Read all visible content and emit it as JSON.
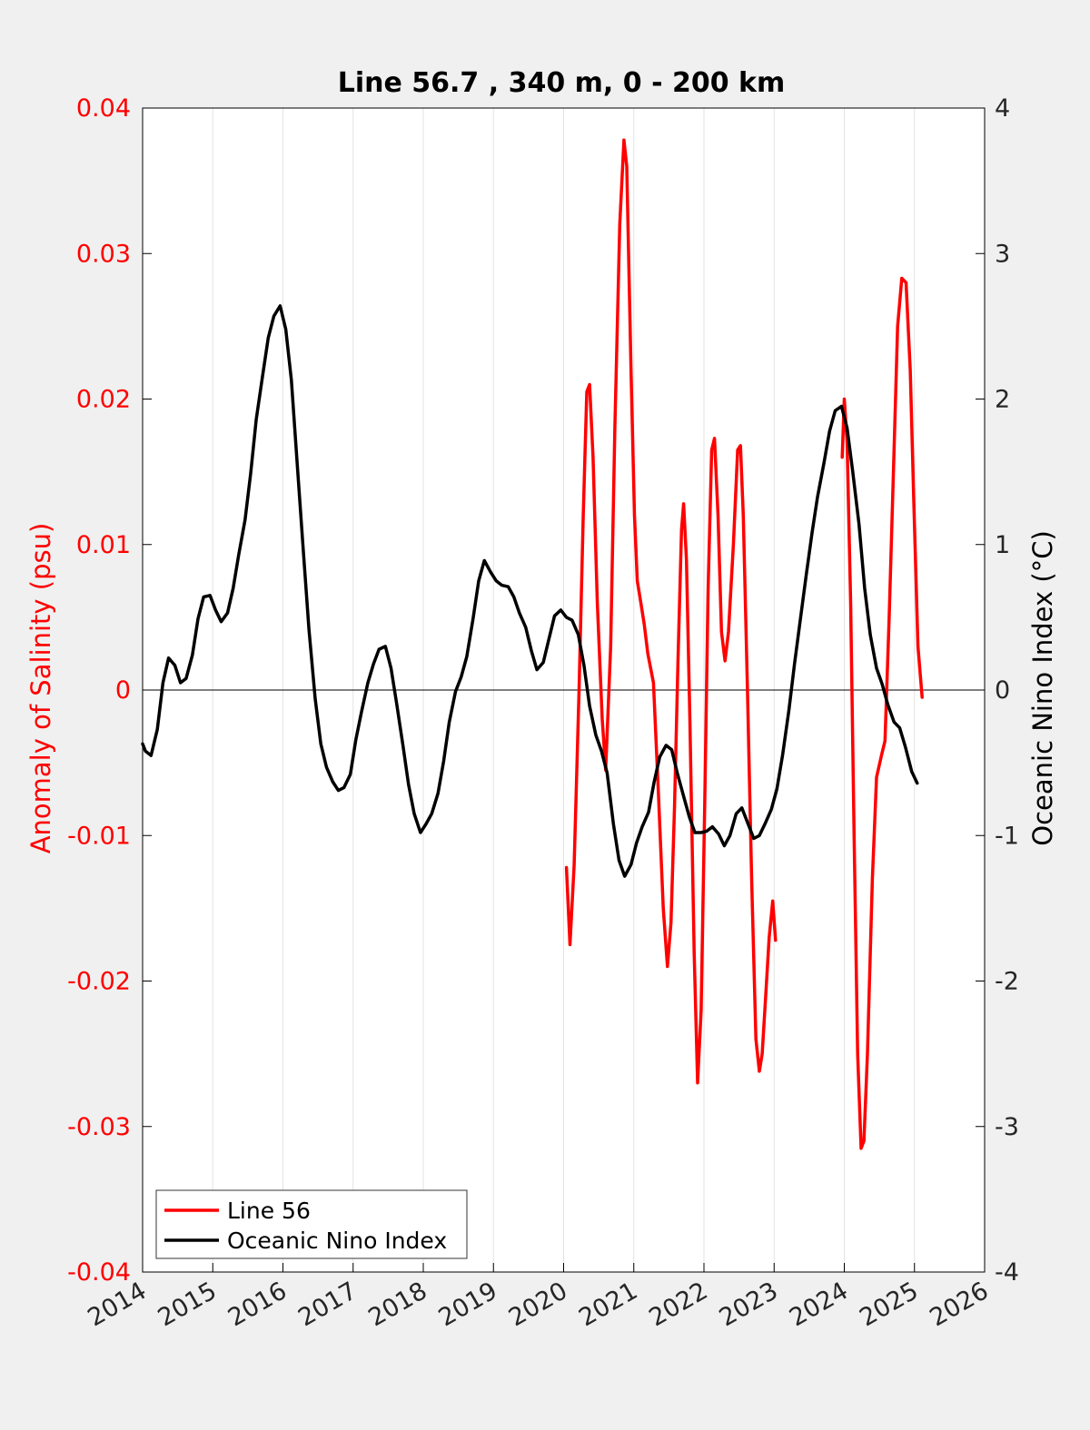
{
  "chart_data": {
    "type": "line",
    "title": "Line 56.7 , 340 m, 0 - 200 km",
    "xlim": [
      2014,
      2026
    ],
    "x_ticks": [
      "2014",
      "2015",
      "2016",
      "2017",
      "2018",
      "2019",
      "2020",
      "2021",
      "2022",
      "2023",
      "2024",
      "2025",
      "2026"
    ],
    "y_left": {
      "label": "Anomaly of Salinity (psu)",
      "lim": [
        -0.04,
        0.04
      ],
      "ticks": [
        "-0.04",
        "-0.03",
        "-0.02",
        "-0.01",
        "0",
        "0.01",
        "0.02",
        "0.03",
        "0.04"
      ],
      "color": "#ff0000"
    },
    "y_right": {
      "label": "Oceanic Nino Index (°C)",
      "lim": [
        -4,
        4
      ],
      "ticks": [
        "-4",
        "-3",
        "-2",
        "-1",
        "0",
        "1",
        "2",
        "3",
        "4"
      ],
      "color": "#000000"
    },
    "grid": "vertical",
    "legend": "bottom-left",
    "series": [
      {
        "name": "Line 56",
        "axis": "left",
        "color": "#ff0000",
        "segments": [
          [
            [
              2020.04,
              -0.0122
            ],
            [
              2020.09,
              -0.0175
            ],
            [
              2020.15,
              -0.012
            ],
            [
              2020.22,
              0.0
            ],
            [
              2020.28,
              0.012
            ],
            [
              2020.33,
              0.0205
            ],
            [
              2020.37,
              0.021
            ],
            [
              2020.42,
              0.016
            ],
            [
              2020.48,
              0.006
            ],
            [
              2020.55,
              -0.002
            ],
            [
              2020.6,
              -0.0055
            ],
            [
              2020.67,
              0.003
            ],
            [
              2020.73,
              0.018
            ],
            [
              2020.8,
              0.032
            ],
            [
              2020.86,
              0.0378
            ],
            [
              2020.9,
              0.036
            ],
            [
              2020.96,
              0.022
            ],
            [
              2021.01,
              0.012
            ],
            [
              2021.05,
              0.0075
            ],
            [
              2021.1,
              0.006
            ],
            [
              2021.15,
              0.0045
            ],
            [
              2021.2,
              0.0025
            ],
            [
              2021.28,
              0.0005
            ],
            [
              2021.35,
              -0.007
            ],
            [
              2021.42,
              -0.015
            ],
            [
              2021.48,
              -0.019
            ],
            [
              2021.53,
              -0.016
            ],
            [
              2021.58,
              -0.008
            ],
            [
              2021.63,
              0.002
            ],
            [
              2021.68,
              0.011
            ],
            [
              2021.71,
              0.0128
            ],
            [
              2021.75,
              0.009
            ],
            [
              2021.8,
              -0.002
            ],
            [
              2021.86,
              -0.018
            ],
            [
              2021.91,
              -0.027
            ],
            [
              2021.96,
              -0.022
            ],
            [
              2022.01,
              -0.008
            ],
            [
              2022.06,
              0.007
            ],
            [
              2022.11,
              0.0165
            ],
            [
              2022.15,
              0.0173
            ],
            [
              2022.2,
              0.012
            ],
            [
              2022.25,
              0.004
            ],
            [
              2022.3,
              0.002
            ],
            [
              2022.35,
              0.004
            ],
            [
              2022.42,
              0.01
            ],
            [
              2022.48,
              0.0165
            ],
            [
              2022.52,
              0.0168
            ],
            [
              2022.56,
              0.012
            ],
            [
              2022.62,
              0.0
            ],
            [
              2022.68,
              -0.013
            ],
            [
              2022.74,
              -0.024
            ],
            [
              2022.79,
              -0.0262
            ],
            [
              2022.83,
              -0.025
            ],
            [
              2022.88,
              -0.021
            ],
            [
              2022.93,
              -0.017
            ],
            [
              2022.98,
              -0.0145
            ],
            [
              2023.02,
              -0.0172
            ]
          ],
          [
            [
              2023.97,
              0.016
            ],
            [
              2024.0,
              0.02
            ],
            [
              2024.04,
              0.017
            ],
            [
              2024.09,
              0.006
            ],
            [
              2024.14,
              -0.01
            ],
            [
              2024.19,
              -0.025
            ],
            [
              2024.24,
              -0.0315
            ],
            [
              2024.28,
              -0.031
            ],
            [
              2024.33,
              -0.025
            ],
            [
              2024.4,
              -0.013
            ],
            [
              2024.46,
              -0.006
            ],
            [
              2024.53,
              -0.0045
            ],
            [
              2024.58,
              -0.0035
            ],
            [
              2024.64,
              0.005
            ],
            [
              2024.7,
              0.015
            ],
            [
              2024.76,
              0.025
            ],
            [
              2024.82,
              0.0283
            ],
            [
              2024.88,
              0.028
            ],
            [
              2024.94,
              0.022
            ],
            [
              2024.99,
              0.013
            ],
            [
              2025.05,
              0.003
            ],
            [
              2025.11,
              -0.0005
            ]
          ]
        ]
      },
      {
        "name": "Oceanic Nino Index",
        "axis": "right",
        "color": "#000000",
        "segments": [
          [
            [
              2014.0,
              -0.37
            ],
            [
              2014.04,
              -0.42
            ],
            [
              2014.12,
              -0.45
            ],
            [
              2014.21,
              -0.27
            ],
            [
              2014.29,
              0.05
            ],
            [
              2014.37,
              0.22
            ],
            [
              2014.46,
              0.17
            ],
            [
              2014.54,
              0.05
            ],
            [
              2014.62,
              0.08
            ],
            [
              2014.71,
              0.24
            ],
            [
              2014.79,
              0.49
            ],
            [
              2014.87,
              0.64
            ],
            [
              2014.96,
              0.65
            ],
            [
              2015.04,
              0.55
            ],
            [
              2015.12,
              0.47
            ],
            [
              2015.21,
              0.53
            ],
            [
              2015.29,
              0.7
            ],
            [
              2015.37,
              0.93
            ],
            [
              2015.46,
              1.17
            ],
            [
              2015.54,
              1.49
            ],
            [
              2015.62,
              1.86
            ],
            [
              2015.71,
              2.16
            ],
            [
              2015.79,
              2.42
            ],
            [
              2015.87,
              2.57
            ],
            [
              2015.96,
              2.64
            ],
            [
              2016.04,
              2.48
            ],
            [
              2016.12,
              2.13
            ],
            [
              2016.21,
              1.51
            ],
            [
              2016.29,
              0.96
            ],
            [
              2016.37,
              0.42
            ],
            [
              2016.46,
              -0.06
            ],
            [
              2016.54,
              -0.37
            ],
            [
              2016.62,
              -0.53
            ],
            [
              2016.71,
              -0.63
            ],
            [
              2016.79,
              -0.69
            ],
            [
              2016.87,
              -0.67
            ],
            [
              2016.96,
              -0.58
            ],
            [
              2017.04,
              -0.34
            ],
            [
              2017.12,
              -0.15
            ],
            [
              2017.21,
              0.05
            ],
            [
              2017.29,
              0.18
            ],
            [
              2017.37,
              0.28
            ],
            [
              2017.46,
              0.3
            ],
            [
              2017.54,
              0.15
            ],
            [
              2017.62,
              -0.09
            ],
            [
              2017.71,
              -0.38
            ],
            [
              2017.79,
              -0.65
            ],
            [
              2017.87,
              -0.85
            ],
            [
              2017.96,
              -0.98
            ],
            [
              2018.04,
              -0.92
            ],
            [
              2018.12,
              -0.85
            ],
            [
              2018.21,
              -0.71
            ],
            [
              2018.29,
              -0.49
            ],
            [
              2018.37,
              -0.22
            ],
            [
              2018.46,
              -0.01
            ],
            [
              2018.54,
              0.09
            ],
            [
              2018.62,
              0.23
            ],
            [
              2018.71,
              0.49
            ],
            [
              2018.79,
              0.75
            ],
            [
              2018.87,
              0.89
            ],
            [
              2018.96,
              0.81
            ],
            [
              2019.04,
              0.75
            ],
            [
              2019.12,
              0.72
            ],
            [
              2019.21,
              0.71
            ],
            [
              2019.29,
              0.64
            ],
            [
              2019.37,
              0.53
            ],
            [
              2019.46,
              0.43
            ],
            [
              2019.54,
              0.27
            ],
            [
              2019.62,
              0.14
            ],
            [
              2019.71,
              0.19
            ],
            [
              2019.79,
              0.35
            ],
            [
              2019.87,
              0.51
            ],
            [
              2019.96,
              0.55
            ],
            [
              2020.04,
              0.5
            ],
            [
              2020.12,
              0.48
            ],
            [
              2020.21,
              0.38
            ],
            [
              2020.29,
              0.17
            ],
            [
              2020.37,
              -0.11
            ],
            [
              2020.46,
              -0.31
            ],
            [
              2020.54,
              -0.42
            ],
            [
              2020.62,
              -0.57
            ],
            [
              2020.71,
              -0.92
            ],
            [
              2020.79,
              -1.17
            ],
            [
              2020.87,
              -1.28
            ],
            [
              2020.96,
              -1.2
            ],
            [
              2021.04,
              -1.05
            ],
            [
              2021.12,
              -0.94
            ],
            [
              2021.21,
              -0.84
            ],
            [
              2021.29,
              -0.63
            ],
            [
              2021.37,
              -0.46
            ],
            [
              2021.46,
              -0.38
            ],
            [
              2021.54,
              -0.41
            ],
            [
              2021.62,
              -0.57
            ],
            [
              2021.71,
              -0.73
            ],
            [
              2021.79,
              -0.87
            ],
            [
              2021.87,
              -0.98
            ],
            [
              2021.96,
              -0.98
            ],
            [
              2022.04,
              -0.97
            ],
            [
              2022.12,
              -0.94
            ],
            [
              2022.21,
              -0.99
            ],
            [
              2022.29,
              -1.07
            ],
            [
              2022.37,
              -1.0
            ],
            [
              2022.46,
              -0.85
            ],
            [
              2022.54,
              -0.81
            ],
            [
              2022.62,
              -0.91
            ],
            [
              2022.71,
              -1.02
            ],
            [
              2022.79,
              -1.0
            ],
            [
              2022.87,
              -0.92
            ],
            [
              2022.96,
              -0.82
            ],
            [
              2023.04,
              -0.68
            ],
            [
              2023.12,
              -0.45
            ],
            [
              2023.21,
              -0.14
            ],
            [
              2023.29,
              0.18
            ],
            [
              2023.37,
              0.47
            ],
            [
              2023.46,
              0.8
            ],
            [
              2023.54,
              1.08
            ],
            [
              2023.62,
              1.33
            ],
            [
              2023.71,
              1.56
            ],
            [
              2023.79,
              1.78
            ],
            [
              2023.87,
              1.92
            ],
            [
              2023.96,
              1.95
            ],
            [
              2024.04,
              1.8
            ],
            [
              2024.12,
              1.5
            ],
            [
              2024.21,
              1.14
            ],
            [
              2024.29,
              0.7
            ],
            [
              2024.37,
              0.38
            ],
            [
              2024.46,
              0.15
            ],
            [
              2024.54,
              0.04
            ],
            [
              2024.62,
              -0.1
            ],
            [
              2024.71,
              -0.22
            ],
            [
              2024.79,
              -0.26
            ],
            [
              2024.87,
              -0.39
            ],
            [
              2024.96,
              -0.56
            ],
            [
              2025.04,
              -0.64
            ]
          ]
        ]
      }
    ]
  }
}
